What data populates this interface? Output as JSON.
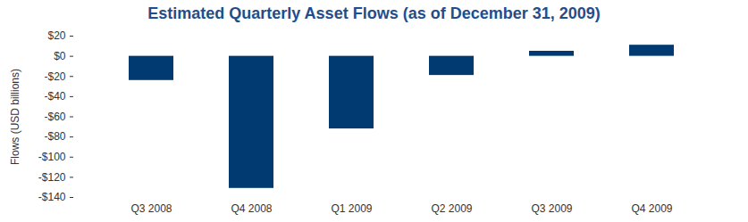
{
  "chart_data": {
    "type": "bar",
    "title": "Estimated Quarterly Asset Flows (as of December 31, 2009)",
    "y_label": "Flows (USD billions)",
    "categories": [
      "Q3 2008",
      "Q4 2008",
      "Q1 2009",
      "Q2 2009",
      "Q3 2009",
      "Q4 2009"
    ],
    "values": [
      -24,
      -131,
      -72,
      -19,
      5,
      11
    ],
    "color": "#003a70",
    "ylim": [
      -140,
      20
    ],
    "yticks": [
      {
        "value": 20,
        "label": "$20"
      },
      {
        "value": 0,
        "label": "$0"
      },
      {
        "value": -20,
        "label": "-$20"
      },
      {
        "value": -40,
        "label": "-$40"
      },
      {
        "value": -60,
        "label": "-$60"
      },
      {
        "value": -80,
        "label": "-$80"
      },
      {
        "value": -100,
        "label": "-$100"
      },
      {
        "value": -120,
        "label": "-$120"
      },
      {
        "value": -140,
        "label": "-$140"
      }
    ],
    "grid": false
  }
}
